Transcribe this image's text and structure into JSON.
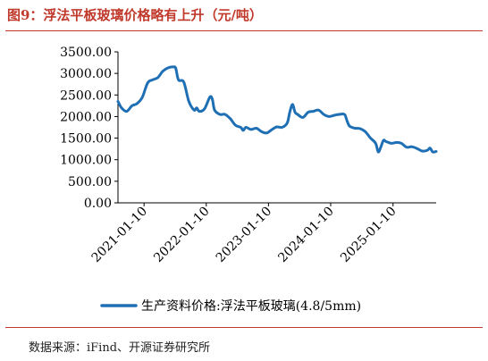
{
  "title": "图9：浮法平板玻璃价格略有上升（元/吨）",
  "source": "数据来源：iFind、开源证券研究所",
  "chart_data": {
    "type": "line",
    "xlabel": "",
    "ylabel": "",
    "ylim": [
      0,
      3500
    ],
    "yticks": [
      "0.00",
      "500.00",
      "1000.00",
      "1500.00",
      "2000.00",
      "2500.00",
      "3000.00",
      "3500.00"
    ],
    "xticks": [
      {
        "label": "2021-01-10",
        "date": "2021-01-10"
      },
      {
        "label": "2022-01-10",
        "date": "2022-01-10"
      },
      {
        "label": "2023-01-10",
        "date": "2023-01-10"
      },
      {
        "label": "2024-01-10",
        "date": "2024-01-10"
      },
      {
        "label": "2025-01-10",
        "date": "2025-01-10"
      }
    ],
    "x_range": [
      "2020-08-10",
      "2025-09-20"
    ],
    "grid": false,
    "legend_position": "bottom",
    "series": [
      {
        "name": "生产资料价格:浮法平板玻璃(4.8/5mm)",
        "color": "#1f6fb5",
        "points": [
          [
            "2020-08-10",
            2350
          ],
          [
            "2020-08-31",
            2200
          ],
          [
            "2020-09-30",
            2120
          ],
          [
            "2020-10-31",
            2250
          ],
          [
            "2020-11-30",
            2300
          ],
          [
            "2020-12-31",
            2450
          ],
          [
            "2021-01-31",
            2780
          ],
          [
            "2021-02-28",
            2850
          ],
          [
            "2021-03-31",
            2900
          ],
          [
            "2021-04-30",
            3050
          ],
          [
            "2021-05-31",
            3130
          ],
          [
            "2021-06-30",
            3150
          ],
          [
            "2021-07-15",
            3120
          ],
          [
            "2021-07-31",
            2850
          ],
          [
            "2021-08-31",
            2800
          ],
          [
            "2021-09-30",
            2350
          ],
          [
            "2021-10-31",
            2150
          ],
          [
            "2021-11-15",
            2200
          ],
          [
            "2021-11-30",
            2120
          ],
          [
            "2021-12-31",
            2180
          ],
          [
            "2022-01-31",
            2450
          ],
          [
            "2022-02-15",
            2400
          ],
          [
            "2022-02-28",
            2150
          ],
          [
            "2022-03-31",
            2050
          ],
          [
            "2022-04-30",
            2050
          ],
          [
            "2022-05-31",
            1950
          ],
          [
            "2022-06-30",
            1800
          ],
          [
            "2022-07-31",
            1750
          ],
          [
            "2022-08-15",
            1680
          ],
          [
            "2022-08-31",
            1750
          ],
          [
            "2022-09-30",
            1700
          ],
          [
            "2022-10-31",
            1730
          ],
          [
            "2022-11-30",
            1650
          ],
          [
            "2022-12-31",
            1620
          ],
          [
            "2023-01-31",
            1700
          ],
          [
            "2023-02-28",
            1760
          ],
          [
            "2023-03-31",
            1750
          ],
          [
            "2023-04-30",
            1850
          ],
          [
            "2023-05-15",
            2100
          ],
          [
            "2023-05-31",
            2280
          ],
          [
            "2023-06-15",
            2100
          ],
          [
            "2023-06-30",
            2050
          ],
          [
            "2023-07-31",
            1980
          ],
          [
            "2023-08-31",
            2100
          ],
          [
            "2023-09-30",
            2120
          ],
          [
            "2023-10-31",
            2150
          ],
          [
            "2023-11-30",
            2050
          ],
          [
            "2023-12-31",
            2000
          ],
          [
            "2024-01-31",
            2030
          ],
          [
            "2024-02-29",
            2050
          ],
          [
            "2024-03-31",
            2050
          ],
          [
            "2024-04-15",
            1900
          ],
          [
            "2024-04-30",
            1780
          ],
          [
            "2024-05-31",
            1730
          ],
          [
            "2024-06-30",
            1720
          ],
          [
            "2024-07-31",
            1650
          ],
          [
            "2024-08-31",
            1500
          ],
          [
            "2024-09-30",
            1380
          ],
          [
            "2024-10-15",
            1180
          ],
          [
            "2024-10-31",
            1300
          ],
          [
            "2024-11-15",
            1450
          ],
          [
            "2024-11-30",
            1420
          ],
          [
            "2024-12-31",
            1380
          ],
          [
            "2025-01-31",
            1400
          ],
          [
            "2025-02-28",
            1380
          ],
          [
            "2025-03-31",
            1290
          ],
          [
            "2025-04-30",
            1300
          ],
          [
            "2025-05-31",
            1260
          ],
          [
            "2025-06-30",
            1200
          ],
          [
            "2025-07-31",
            1220
          ],
          [
            "2025-08-15",
            1270
          ],
          [
            "2025-08-31",
            1180
          ],
          [
            "2025-09-20",
            1190
          ]
        ]
      }
    ]
  }
}
